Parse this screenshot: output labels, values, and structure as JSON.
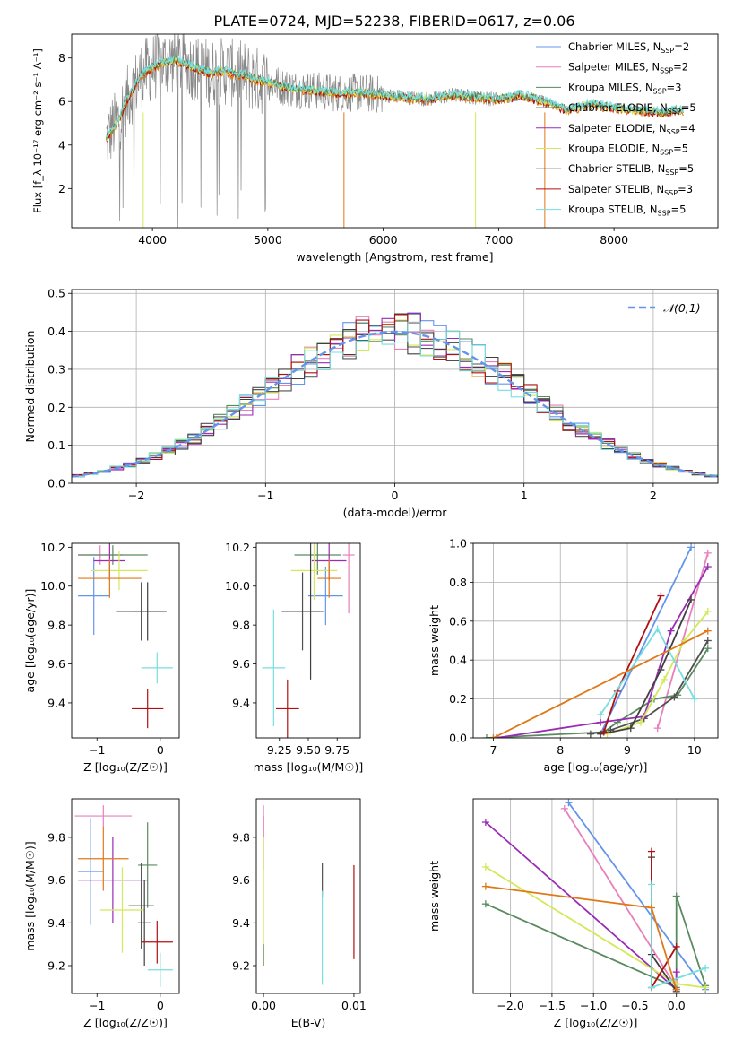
{
  "figure_title": "PLATE=0724, MJD=52238, FIBERID=0617, z=0.06",
  "colors": [
    "#6495ed",
    "#e87fbb",
    "#5a8a5f",
    "#505050",
    "#9a2bb5",
    "#d4e85a",
    "#404040",
    "#b01010",
    "#78dede",
    "#e07818",
    "#888888"
  ],
  "chart_data": [
    {
      "id": "spectrum",
      "type": "line",
      "xlabel": "wavelength [Angstrom, rest frame]",
      "ylabel": "Flux [f_λ 10⁻¹⁷ erg cm⁻² s⁻¹ A⁻¹]",
      "xlim": [
        3300,
        8900
      ],
      "ylim": [
        0.2,
        9.1
      ],
      "xticks": [
        4000,
        5000,
        6000,
        7000,
        8000
      ],
      "yticks": [
        2,
        4,
        6,
        8
      ],
      "legend_position": "right",
      "legend": [
        "Chabrier MILES, N_SSP=2",
        "Salpeter MILES, N_SSP=2",
        "Kroupa MILES, N_SSP=3",
        "Chabrier ELODIE, N_SSP=5",
        "Salpeter ELODIE, N_SSP=4",
        "Kroupa ELODIE, N_SSP=5",
        "Chabrier STELIB, N_SSP=5",
        "Salpeter STELIB, N_SSP=3",
        "Kroupa STELIB, N_SSP=5"
      ],
      "model_continuum": {
        "x": [
          3600,
          3700,
          3800,
          3900,
          4000,
          4100,
          4200,
          4300,
          4400,
          4500,
          4600,
          4700,
          4800,
          4900,
          5000,
          5200,
          5400,
          5600,
          5800,
          6000,
          6200,
          6400,
          6600,
          6800,
          7000,
          7200,
          7400,
          7600,
          7800,
          8000,
          8200,
          8400,
          8600
        ],
        "y": [
          4.3,
          5.1,
          6.3,
          7.2,
          7.6,
          7.8,
          7.9,
          7.7,
          7.5,
          7.3,
          7.4,
          7.3,
          7.2,
          7.0,
          6.9,
          6.6,
          6.5,
          6.4,
          6.4,
          6.3,
          6.2,
          6.1,
          6.3,
          6.2,
          6.1,
          6.3,
          6.0,
          5.6,
          5.9,
          5.7,
          5.6,
          5.5,
          5.6
        ]
      },
      "observed_range": [
        3600,
        7420
      ]
    },
    {
      "id": "residual-histogram",
      "type": "line",
      "xlabel": "(data-model)/error",
      "ylabel": "Normed distribution",
      "xlim": [
        -2.5,
        2.5
      ],
      "ylim": [
        0.0,
        0.51
      ],
      "xticks": [
        -2,
        -1,
        0,
        1,
        2
      ],
      "yticks": [
        0.0,
        0.1,
        0.2,
        0.3,
        0.4,
        0.5
      ],
      "grid": true,
      "legend_position": "top-right",
      "legend": [
        "𝒩(0,1)"
      ],
      "bin_width": 0.1,
      "gaussian": {
        "mean": 0,
        "sigma": 1
      }
    },
    {
      "id": "age-vs-z",
      "type": "scatter",
      "xlabel": "Z [log₁₀(Z/Z☉)]",
      "ylabel": "age  [log₁₀(age/yr)]",
      "xlim": [
        -1.4,
        0.3
      ],
      "ylim": [
        9.22,
        10.22
      ],
      "xticks": [
        -1,
        0
      ],
      "yticks": [
        9.4,
        9.6,
        9.8,
        10.0,
        10.2
      ],
      "points": [
        {
          "x": -1.05,
          "y": 9.95,
          "x_err": 0.25,
          "y_err": 0.2,
          "c": 0
        },
        {
          "x": -0.95,
          "y": 10.16,
          "x_err": 0.35,
          "y_err": 0.05,
          "c": 1
        },
        {
          "x": -0.75,
          "y": 10.16,
          "x_err": 0.55,
          "y_err": 0.05,
          "c": 2
        },
        {
          "x": -0.3,
          "y": 9.87,
          "x_err": 0.4,
          "y_err": 0.15,
          "c": 3
        },
        {
          "x": -0.8,
          "y": 10.13,
          "x_err": 0.25,
          "y_err": 0.1,
          "c": 4
        },
        {
          "x": -0.65,
          "y": 10.08,
          "x_err": 0.45,
          "y_err": 0.1,
          "c": 5
        },
        {
          "x": -0.2,
          "y": 9.87,
          "x_err": 0.25,
          "y_err": 0.15,
          "c": 6
        },
        {
          "x": -0.2,
          "y": 9.37,
          "x_err": 0.25,
          "y_err": 0.1,
          "c": 7
        },
        {
          "x": -0.05,
          "y": 9.58,
          "x_err": 0.25,
          "y_err": 0.08,
          "c": 8
        },
        {
          "x": -0.8,
          "y": 10.04,
          "x_err": 0.5,
          "y_err": 0.1,
          "c": 9
        }
      ]
    },
    {
      "id": "age-vs-mass",
      "type": "scatter",
      "xlabel": "mass [log₁₀(M/M☉)]",
      "ylabel": "",
      "xlim": [
        9.05,
        9.95
      ],
      "ylim": [
        9.22,
        10.22
      ],
      "xticks": [
        9.25,
        9.5,
        9.75
      ],
      "yticks": [
        9.4,
        9.6,
        9.8,
        10.0,
        10.2
      ],
      "points": [
        {
          "x": 9.65,
          "y": 9.95,
          "x_err": 0.15,
          "y_err": 0.15,
          "c": 0
        },
        {
          "x": 9.85,
          "y": 10.16,
          "x_err": 0.05,
          "y_err": 0.3,
          "c": 1
        },
        {
          "x": 9.58,
          "y": 10.16,
          "x_err": 0.2,
          "y_err": 0.1,
          "c": 2
        },
        {
          "x": 9.45,
          "y": 9.87,
          "x_err": 0.18,
          "y_err": 0.2,
          "c": 3
        },
        {
          "x": 9.68,
          "y": 10.13,
          "x_err": 0.15,
          "y_err": 0.1,
          "c": 4
        },
        {
          "x": 9.55,
          "y": 10.08,
          "x_err": 0.2,
          "y_err": 0.15,
          "c": 5
        },
        {
          "x": 9.52,
          "y": 9.87,
          "x_err": 0.08,
          "y_err": 0.35,
          "c": 6
        },
        {
          "x": 9.32,
          "y": 9.37,
          "x_err": 0.1,
          "y_err": 0.15,
          "c": 7
        },
        {
          "x": 9.2,
          "y": 9.58,
          "x_err": 0.1,
          "y_err": 0.3,
          "c": 8
        },
        {
          "x": 9.68,
          "y": 10.04,
          "x_err": 0.1,
          "y_err": 0.1,
          "c": 9
        }
      ]
    },
    {
      "id": "weight-vs-age",
      "type": "line",
      "xlabel": "age  [log₁₀(age/yr)]",
      "ylabel": "mass weight",
      "xlim": [
        6.7,
        10.35
      ],
      "ylim": [
        0.0,
        1.0
      ],
      "xticks": [
        7,
        8,
        9,
        10
      ],
      "yticks": [
        0.0,
        0.2,
        0.4,
        0.6,
        0.8,
        1.0
      ],
      "grid": true,
      "series": [
        {
          "c": 0,
          "x": [
            8.6,
            9.95
          ],
          "y": [
            0.02,
            0.98
          ]
        },
        {
          "c": 1,
          "x": [
            9.45,
            10.2
          ],
          "y": [
            0.05,
            0.95
          ]
        },
        {
          "c": 2,
          "x": [
            6.9,
            8.65,
            8.85,
            9.4,
            9.75,
            10.2
          ],
          "y": [
            0.0,
            0.03,
            0.08,
            0.2,
            0.22,
            0.46
          ]
        },
        {
          "c": 3,
          "x": [
            8.45,
            8.75,
            9.25,
            9.7,
            10.2
          ],
          "y": [
            0.02,
            0.04,
            0.1,
            0.21,
            0.5
          ]
        },
        {
          "c": 4,
          "x": [
            7.05,
            8.6,
            9.25,
            9.65,
            10.2
          ],
          "y": [
            0.0,
            0.08,
            0.11,
            0.55,
            0.88
          ]
        },
        {
          "c": 5,
          "x": [
            8.7,
            9.2,
            9.55,
            9.85,
            10.2
          ],
          "y": [
            0.02,
            0.08,
            0.3,
            0.5,
            0.65
          ]
        },
        {
          "c": 6,
          "x": [
            8.6,
            9.05,
            9.5,
            9.95
          ],
          "y": [
            0.02,
            0.05,
            0.35,
            0.71
          ]
        },
        {
          "c": 7,
          "x": [
            8.65,
            8.85,
            9.5
          ],
          "y": [
            0.03,
            0.24,
            0.73
          ]
        },
        {
          "c": 8,
          "x": [
            8.6,
            9.45,
            10.0
          ],
          "y": [
            0.12,
            0.56,
            0.2
          ]
        },
        {
          "c": 9,
          "x": [
            7.0,
            10.2
          ],
          "y": [
            0.0,
            0.55
          ]
        }
      ]
    },
    {
      "id": "mass-vs-z",
      "type": "scatter",
      "xlabel": "Z [log₁₀(Z/Z☉)]",
      "ylabel": "mass [log₁₀(M/M☉)]",
      "xlim": [
        -1.4,
        0.3
      ],
      "ylim": [
        9.07,
        9.98
      ],
      "xticks": [
        -1,
        0
      ],
      "yticks": [
        9.2,
        9.4,
        9.6,
        9.8
      ],
      "points": [
        {
          "x": -1.1,
          "y": 9.64,
          "x_err": 0.2,
          "y_err": 0.25,
          "c": 0
        },
        {
          "x": -0.9,
          "y": 9.9,
          "x_err": 0.45,
          "y_err": 0.05,
          "c": 1
        },
        {
          "x": -0.2,
          "y": 9.67,
          "x_err": 0.15,
          "y_err": 0.2,
          "c": 2
        },
        {
          "x": -0.3,
          "y": 9.48,
          "x_err": 0.2,
          "y_err": 0.2,
          "c": 3
        },
        {
          "x": -0.75,
          "y": 9.6,
          "x_err": 0.55,
          "y_err": 0.2,
          "c": 4
        },
        {
          "x": -0.6,
          "y": 9.46,
          "x_err": 0.35,
          "y_err": 0.2,
          "c": 5
        },
        {
          "x": -0.25,
          "y": 9.4,
          "x_err": 0.1,
          "y_err": 0.2,
          "c": 6
        },
        {
          "x": -0.05,
          "y": 9.31,
          "x_err": 0.25,
          "y_err": 0.1,
          "c": 7
        },
        {
          "x": 0.0,
          "y": 9.18,
          "x_err": 0.2,
          "y_err": 0.08,
          "c": 8
        },
        {
          "x": -0.9,
          "y": 9.7,
          "x_err": 0.4,
          "y_err": 0.15,
          "c": 9
        }
      ]
    },
    {
      "id": "mass-vs-ebv",
      "type": "scatter",
      "xlabel": "E(B-V)",
      "ylabel": "",
      "xlim": [
        -0.0008,
        0.0107
      ],
      "ylim": [
        9.07,
        9.98
      ],
      "xticks": [
        0.0,
        0.01
      ],
      "xtick_labels": [
        "0.00",
        "0.01"
      ],
      "yticks": [
        9.2,
        9.4,
        9.6,
        9.8
      ],
      "points": [
        {
          "x": 0.0,
          "y": 9.85,
          "y_err": 0.05,
          "c": 4
        },
        {
          "x": 0.0,
          "y": 9.8,
          "y_err": 0.15,
          "c": 1
        },
        {
          "x": 0.0,
          "y": 9.5,
          "y_err": 0.3,
          "c": 5
        },
        {
          "x": 0.0,
          "y": 9.25,
          "y_err": 0.05,
          "c": 2
        },
        {
          "x": 0.0065,
          "y": 9.6,
          "y_err": 0.08,
          "c": 3
        },
        {
          "x": 0.0065,
          "y": 9.33,
          "y_err": 0.22,
          "c": 8
        },
        {
          "x": 0.01,
          "y": 9.45,
          "y_err": 0.22,
          "c": 7
        }
      ]
    },
    {
      "id": "weight-vs-z",
      "type": "line",
      "xlabel": "Z [log₁₀(Z/Z☉)]",
      "ylabel": "mass weight",
      "xlim": [
        -2.45,
        0.5
      ],
      "ylim": [
        0.0,
        1.0
      ],
      "xticks": [
        -2.0,
        -1.5,
        -1.0,
        -0.5,
        0.0
      ],
      "grid": true,
      "series": [
        {
          "c": 0,
          "x": [
            -1.3,
            0.35
          ],
          "y": [
            0.98,
            0.02
          ]
        },
        {
          "c": 1,
          "x": [
            -1.35,
            0.0
          ],
          "y": [
            0.95,
            0.03
          ]
        },
        {
          "c": 2,
          "x": [
            -2.3,
            0.0,
            0.0,
            0.35
          ],
          "y": [
            0.46,
            0.03,
            0.5,
            0.04
          ]
        },
        {
          "c": 4,
          "x": [
            -2.3,
            0.0,
            0.0
          ],
          "y": [
            0.88,
            0.02,
            0.11
          ]
        },
        {
          "c": 5,
          "x": [
            -2.3,
            0.0,
            0.35
          ],
          "y": [
            0.65,
            0.05,
            0.03
          ]
        },
        {
          "c": 6,
          "x": [
            -0.3,
            -0.3,
            0.0
          ],
          "y": [
            0.7,
            0.2,
            0.01
          ]
        },
        {
          "c": 7,
          "x": [
            -0.3,
            -0.3,
            0.0
          ],
          "y": [
            0.73,
            0.03,
            0.24
          ]
        },
        {
          "c": 8,
          "x": [
            -0.3,
            -0.3,
            0.35
          ],
          "y": [
            0.56,
            0.03,
            0.13
          ]
        },
        {
          "c": 9,
          "x": [
            -2.3,
            -0.3,
            0.0
          ],
          "y": [
            0.55,
            0.44,
            0.02
          ]
        }
      ]
    }
  ]
}
